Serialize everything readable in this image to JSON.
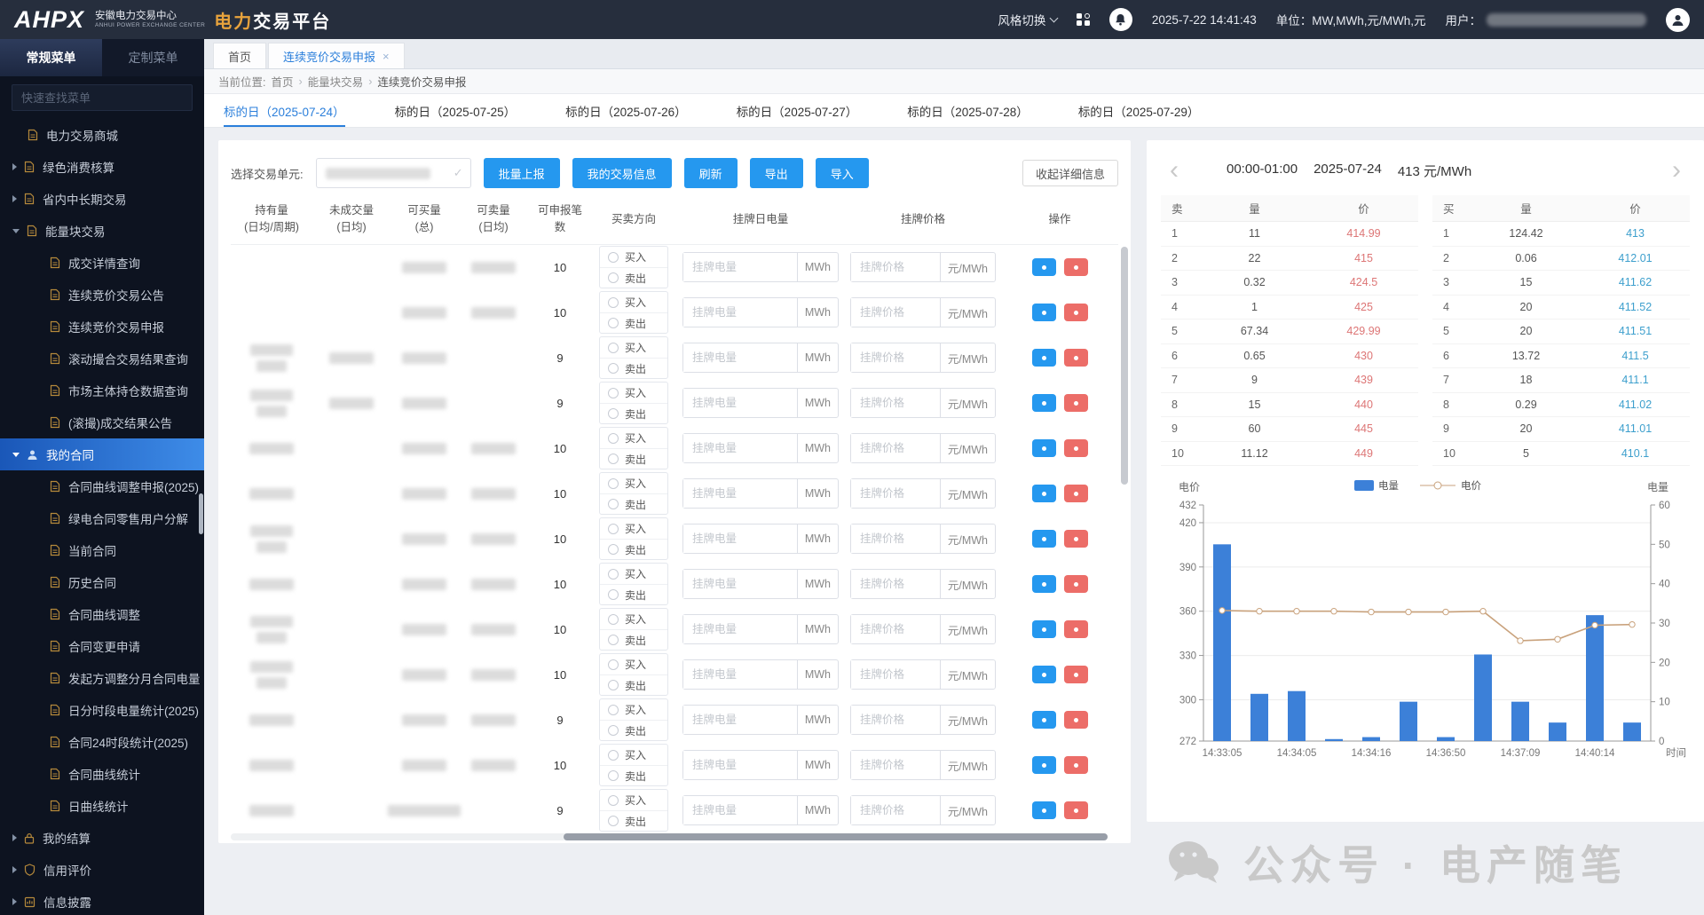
{
  "header": {
    "logo_text": "AHPX",
    "org_cn": "安徽电力交易中心",
    "org_en": "ANHUI POWER EXCHANGE CENTER",
    "product_accent": "电力",
    "product_rest": "交易平台",
    "style_switch": "风格切换",
    "datetime": "2025-7-22 14:41:43",
    "units_label": "单位：MW,MWh,元/MWh,元",
    "user_label": "用户："
  },
  "sidebar": {
    "tabs": [
      {
        "label": "常规菜单",
        "active": true
      },
      {
        "label": "定制菜单",
        "active": false
      }
    ],
    "search_placeholder": "快速查找菜单",
    "menu": [
      {
        "label": "电力交易商城",
        "level": 0,
        "icon": "doc",
        "arrow": "none"
      },
      {
        "label": "绿色消费核算",
        "level": 0,
        "icon": "doc",
        "arrow": "right"
      },
      {
        "label": "省内中长期交易",
        "level": 0,
        "icon": "doc",
        "arrow": "right"
      },
      {
        "label": "能量块交易",
        "level": 0,
        "icon": "doc",
        "arrow": "down"
      },
      {
        "label": "成交详情查询",
        "level": 1,
        "icon": "doc"
      },
      {
        "label": "连续竞价交易公告",
        "level": 1,
        "icon": "doc"
      },
      {
        "label": "连续竞价交易申报",
        "level": 1,
        "icon": "doc"
      },
      {
        "label": "滚动撮合交易结果查询",
        "level": 1,
        "icon": "doc"
      },
      {
        "label": "市场主体持仓数据查询",
        "level": 1,
        "icon": "doc"
      },
      {
        "label": "(滚撮)成交结果公告",
        "level": 1,
        "icon": "doc"
      },
      {
        "label": "我的合同",
        "level": 0,
        "icon": "user",
        "arrow": "down",
        "selected": true
      },
      {
        "label": "合同曲线调整申报(2025)",
        "level": 1,
        "icon": "doc"
      },
      {
        "label": "绿电合同零售用户分解",
        "level": 1,
        "icon": "doc"
      },
      {
        "label": "当前合同",
        "level": 1,
        "icon": "doc"
      },
      {
        "label": "历史合同",
        "level": 1,
        "icon": "doc"
      },
      {
        "label": "合同曲线调整",
        "level": 1,
        "icon": "doc"
      },
      {
        "label": "合同变更申请",
        "level": 1,
        "icon": "doc"
      },
      {
        "label": "发起方调整分月合同电量",
        "level": 1,
        "icon": "doc"
      },
      {
        "label": "日分时段电量统计(2025)",
        "level": 1,
        "icon": "doc"
      },
      {
        "label": "合同24时段统计(2025)",
        "level": 1,
        "icon": "doc"
      },
      {
        "label": "合同曲线统计",
        "level": 1,
        "icon": "doc"
      },
      {
        "label": "日曲线统计",
        "level": 1,
        "icon": "doc"
      },
      {
        "label": "我的结算",
        "level": 0,
        "icon": "lock",
        "arrow": "right"
      },
      {
        "label": "信用评价",
        "level": 0,
        "icon": "shield",
        "arrow": "right"
      },
      {
        "label": "信息披露",
        "level": 0,
        "icon": "board",
        "arrow": "right"
      }
    ]
  },
  "page_tabs": {
    "home": "首页",
    "current": "连续竞价交易申报",
    "close": "×"
  },
  "breadcrumb": {
    "prefix": "当前位置:",
    "items": [
      "首页",
      "能量块交易",
      "连续竞价交易申报"
    ],
    "separator": "›"
  },
  "date_tabs": {
    "active_index": 0,
    "items": [
      "标的日（2025-07-24）",
      "标的日（2025-07-25）",
      "标的日（2025-07-26）",
      "标的日（2025-07-27）",
      "标的日（2025-07-28）",
      "标的日（2025-07-29）"
    ]
  },
  "toolbar": {
    "unit_label": "选择交易单元:",
    "buttons": [
      "批量上报",
      "我的交易信息",
      "刷新",
      "导出",
      "导入"
    ],
    "collapse_label": "收起详细信息"
  },
  "table": {
    "headers": [
      [
        "持有量",
        "(日均/周期)"
      ],
      [
        "未成交量",
        "(日均)"
      ],
      [
        "可买量",
        "(总)"
      ],
      [
        "可卖量",
        "(日均)"
      ],
      [
        "可申报笔",
        "数"
      ],
      [
        "买卖方向",
        ""
      ],
      [
        "挂牌日电量",
        ""
      ],
      [
        "挂牌价格",
        ""
      ],
      [
        "操作",
        ""
      ]
    ],
    "buy_label": "买入",
    "sell_label": "卖出",
    "qty_placeholder": "挂牌电量",
    "qty_unit": "MWh",
    "price_placeholder": "挂牌价格",
    "price_unit": "元/MWh",
    "rows": [
      {
        "limit": "10",
        "blur": [
          0,
          0,
          1,
          1
        ]
      },
      {
        "limit": "10",
        "blur": [
          0,
          0,
          1,
          1
        ]
      },
      {
        "limit": "9",
        "blur": [
          2,
          1,
          1,
          0
        ]
      },
      {
        "limit": "9",
        "blur": [
          2,
          1,
          1,
          0
        ]
      },
      {
        "limit": "10",
        "blur": [
          1,
          0,
          1,
          1
        ]
      },
      {
        "limit": "10",
        "blur": [
          1,
          0,
          1,
          1
        ]
      },
      {
        "limit": "10",
        "blur": [
          2,
          0,
          1,
          1
        ]
      },
      {
        "limit": "10",
        "blur": [
          1,
          0,
          1,
          1
        ]
      },
      {
        "limit": "10",
        "blur": [
          2,
          0,
          1,
          1
        ]
      },
      {
        "limit": "10",
        "blur": [
          2,
          0,
          1,
          1
        ]
      },
      {
        "limit": "9",
        "blur": [
          1,
          0,
          1,
          1
        ]
      },
      {
        "limit": "10",
        "blur": [
          1,
          0,
          1,
          1
        ]
      },
      {
        "limit": "9",
        "blur": [
          1,
          0,
          3,
          0
        ]
      }
    ]
  },
  "orderbook": {
    "time_range": "00:00-01:00",
    "date": "2025-07-24",
    "last_price": "413 元/MWh",
    "sell": {
      "headers": [
        "卖",
        "量",
        "价"
      ],
      "rows": [
        [
          "1",
          "11",
          "414.99"
        ],
        [
          "2",
          "22",
          "415"
        ],
        [
          "3",
          "0.32",
          "424.5"
        ],
        [
          "4",
          "1",
          "425"
        ],
        [
          "5",
          "67.34",
          "429.99"
        ],
        [
          "6",
          "0.65",
          "430"
        ],
        [
          "7",
          "9",
          "439"
        ],
        [
          "8",
          "15",
          "440"
        ],
        [
          "9",
          "60",
          "445"
        ],
        [
          "10",
          "11.12",
          "449"
        ]
      ]
    },
    "buy": {
      "headers": [
        "买",
        "量",
        "价"
      ],
      "rows": [
        [
          "1",
          "124.42",
          "413"
        ],
        [
          "2",
          "0.06",
          "412.01"
        ],
        [
          "3",
          "15",
          "411.62"
        ],
        [
          "4",
          "20",
          "411.52"
        ],
        [
          "5",
          "20",
          "411.51"
        ],
        [
          "6",
          "13.72",
          "411.5"
        ],
        [
          "7",
          "18",
          "411.1"
        ],
        [
          "8",
          "0.29",
          "411.02"
        ],
        [
          "9",
          "20",
          "411.01"
        ],
        [
          "10",
          "5",
          "410.1"
        ]
      ]
    }
  },
  "chart_data": {
    "type": "bar",
    "x_labels": [
      "14:33:05",
      "",
      "14:34:05",
      "",
      "14:34:16",
      "",
      "14:36:50",
      "",
      "14:37:09",
      "",
      "14:40:14",
      ""
    ],
    "xlabel": "时间",
    "series": [
      {
        "name": "电量",
        "type": "bar",
        "axis": "right",
        "values": [
          50,
          12,
          12.7,
          0.5,
          1,
          10,
          1,
          22,
          10,
          4.7,
          32,
          4.7
        ]
      },
      {
        "name": "电价",
        "type": "line",
        "axis": "left",
        "values": [
          360.5,
          360,
          360,
          360,
          359.5,
          359.5,
          359.5,
          360,
          340,
          341,
          350.5,
          351
        ]
      }
    ],
    "left_axis": {
      "title": "电价",
      "min": 272,
      "max": 432,
      "ticks": [
        432,
        420,
        390,
        360,
        330,
        300,
        272
      ]
    },
    "right_axis": {
      "title": "电量",
      "min": 0,
      "max": 60,
      "ticks": [
        60,
        50,
        40,
        30,
        20,
        10,
        0
      ]
    },
    "bar_color": "#3c80d8",
    "line_color": "#c9a27c",
    "legend_position": "top",
    "grid": true
  },
  "watermark": {
    "text": "公众号 · 电产随笔"
  },
  "colors": {
    "accent_blue": "#2598ef",
    "link_blue": "#2b7fdb",
    "sell_red": "#dd7676",
    "buy_blue": "#3d9fcd",
    "gold": "#b5893b",
    "header_bg": "#262e3d",
    "sidebar_bg": "#0d1320"
  }
}
